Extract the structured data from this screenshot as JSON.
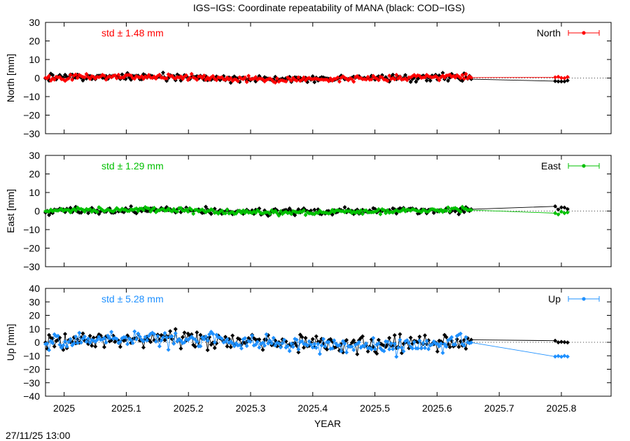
{
  "title": "IGS−IGS: Coordinate repeatability of MANA (black: COD−IGS)",
  "timestamp": "27/11/25 13:00",
  "chart_data": {
    "type": "line",
    "xlabel": "YEAR",
    "xlim": [
      2024.97,
      2025.88
    ],
    "xticks": [
      "2025",
      "2025.1",
      "2025.2",
      "2025.3",
      "2025.4",
      "2025.5",
      "2025.6",
      "2025.7",
      "2025.8"
    ],
    "panels": [
      {
        "key": "north",
        "ylabel": "North [mm]",
        "ylim": [
          -30,
          30
        ],
        "yticks": [
          "30",
          "20",
          "10",
          "0",
          "−10",
          "−20",
          "−30"
        ],
        "std_label": "std ± 1.48 mm",
        "legend": "North",
        "color": "#ff0000",
        "amp_igs": 1.4,
        "amp_cod": 1.6,
        "end_igs": 0.3,
        "end_cod": -1.4
      },
      {
        "key": "east",
        "ylabel": "East [mm]",
        "ylim": [
          -30,
          30
        ],
        "yticks": [
          "30",
          "20",
          "10",
          "0",
          "−10",
          "−20",
          "−30"
        ],
        "std_label": "std ± 1.29 mm",
        "legend": "East",
        "color": "#00c000",
        "amp_igs": 1.2,
        "amp_cod": 1.5,
        "end_igs": -0.8,
        "end_cod": 1.8
      },
      {
        "key": "up",
        "ylabel": "Up [mm]",
        "ylim": [
          -40,
          40
        ],
        "yticks": [
          "40",
          "30",
          "20",
          "10",
          "0",
          "−10",
          "−20",
          "−30",
          "−40"
        ],
        "std_label": "std ± 5.28 mm",
        "legend": "Up",
        "color": "#1e90ff",
        "amp_igs": 4.8,
        "amp_cod": 5.5,
        "end_igs": -10.5,
        "end_cod": 0.5
      }
    ],
    "series": [
      {
        "name": "IGS−IGS",
        "x_range": [
          2024.97,
          2025.655
        ],
        "x_end_cluster": [
          2025.79,
          2025.81
        ]
      },
      {
        "name": "COD−IGS",
        "color": "#000000",
        "x_range": [
          2024.97,
          2025.655
        ],
        "x_end_cluster": [
          2025.79,
          2025.81
        ]
      }
    ]
  }
}
